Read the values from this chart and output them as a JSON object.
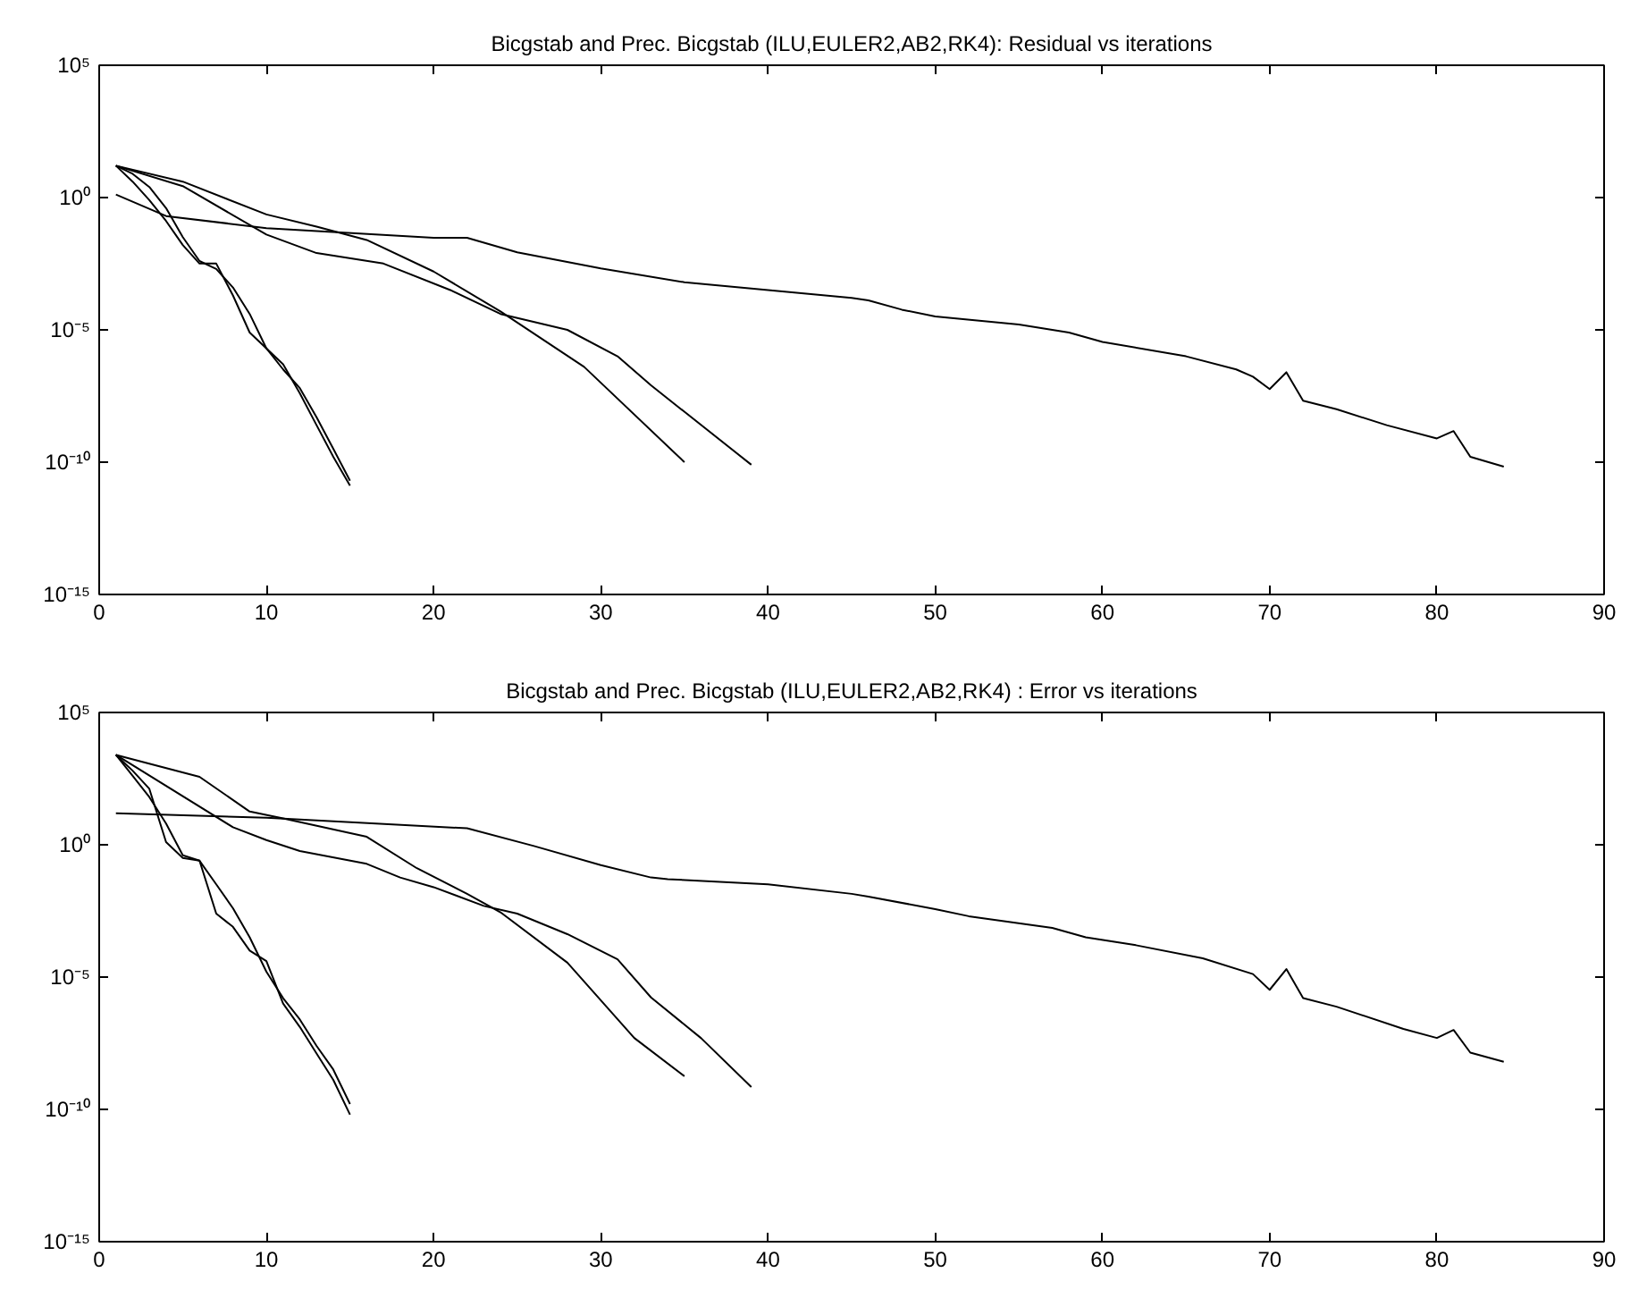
{
  "chart_data": [
    {
      "type": "line",
      "title": "Bicgstab and Prec. Bicgstab (ILU,EULER2,AB2,RK4): Residual vs iterations",
      "log": "y",
      "grid": false,
      "marker": "none",
      "line_style": "solid",
      "xlim": [
        0,
        90
      ],
      "xticks": [
        0,
        10,
        20,
        30,
        40,
        50,
        60,
        70,
        80,
        90
      ],
      "ylim": [
        1e-15,
        100000.0
      ],
      "yticks": [
        {
          "value": 100000.0,
          "label": "10⁵"
        },
        {
          "value": 1,
          "label": "10⁰"
        },
        {
          "value": 1e-05,
          "label": "10⁻⁵"
        },
        {
          "value": 1e-10,
          "label": "10⁻¹⁰"
        },
        {
          "value": 1e-15,
          "label": "10⁻¹⁵"
        }
      ],
      "series": [
        {
          "color": "#000000",
          "x": [
            1,
            4,
            10,
            20,
            22,
            25,
            30,
            35,
            40,
            45,
            46,
            48,
            50,
            55,
            58,
            60,
            65,
            68,
            69,
            70,
            71,
            72,
            74,
            77,
            80,
            81,
            82,
            84
          ],
          "values": [
            1.3,
            0.2,
            0.07,
            0.03,
            0.03,
            0.0085,
            0.0021,
            0.00063,
            0.00032,
            0.00016,
            0.00013,
            5.8e-05,
            3.2e-05,
            1.6e-05,
            7.9e-06,
            3.5e-06,
            1e-06,
            3.2e-07,
            1.7e-07,
            5.8e-08,
            2.5e-07,
            2.1e-08,
            1e-08,
            2.5e-09,
            7.9e-10,
            1.5e-09,
            1.6e-10,
            6.8e-11
          ]
        },
        {
          "color": "#000000",
          "x": [
            1,
            5,
            10,
            13,
            16,
            20,
            24,
            29,
            35
          ],
          "values": [
            16,
            4,
            0.23,
            0.08,
            0.025,
            0.0016,
            5e-05,
            4e-07,
            1e-10
          ]
        },
        {
          "color": "#000000",
          "x": [
            1,
            5,
            10,
            13,
            17,
            21,
            24,
            28,
            31,
            33,
            39
          ],
          "values": [
            16,
            2.7,
            0.04,
            0.008,
            0.0032,
            0.00032,
            4e-05,
            1e-05,
            1e-06,
            8e-08,
            8e-11
          ]
        },
        {
          "color": "#000000",
          "x": [
            1,
            2,
            3,
            4,
            5,
            6,
            7,
            8,
            9,
            10,
            11,
            12,
            13,
            14,
            15
          ],
          "values": [
            16,
            4,
            0.8,
            0.13,
            0.016,
            0.0032,
            0.0032,
            0.0002,
            7.9e-06,
            2e-06,
            5e-07,
            4e-08,
            2.5e-09,
            1.6e-10,
            1.3e-11
          ]
        },
        {
          "color": "#000000",
          "x": [
            1,
            2,
            3,
            4,
            5,
            6,
            7,
            8,
            9,
            10,
            11,
            12,
            13,
            14,
            15
          ],
          "values": [
            16,
            7.9,
            2.5,
            0.4,
            0.032,
            0.004,
            0.002,
            0.0004,
            4e-05,
            2e-06,
            3.2e-07,
            6.3e-08,
            5e-09,
            3.2e-10,
            2e-11
          ]
        }
      ]
    },
    {
      "type": "line",
      "title": "Bicgstab and Prec. Bicgstab (ILU,EULER2,AB2,RK4) : Error vs iterations",
      "log": "y",
      "grid": false,
      "marker": "none",
      "line_style": "solid",
      "xlim": [
        0,
        90
      ],
      "xticks": [
        0,
        10,
        20,
        30,
        40,
        50,
        60,
        70,
        80,
        90
      ],
      "ylim": [
        1e-15,
        100000.0
      ],
      "yticks": [
        {
          "value": 100000.0,
          "label": "10⁵"
        },
        {
          "value": 1,
          "label": "10⁰"
        },
        {
          "value": 1e-05,
          "label": "10⁻⁵"
        },
        {
          "value": 1e-10,
          "label": "10⁻¹⁰"
        },
        {
          "value": 1e-15,
          "label": "10⁻¹⁵"
        }
      ],
      "series": [
        {
          "color": "#000000",
          "x": [
            1,
            10,
            22,
            26,
            30,
            33,
            34,
            40,
            45,
            46,
            50,
            52,
            57,
            59,
            62,
            66,
            69,
            70,
            71,
            72,
            74,
            78,
            80,
            81,
            82,
            84
          ],
          "values": [
            15.5,
            10.5,
            4.2,
            0.9,
            0.17,
            0.058,
            0.05,
            0.032,
            0.014,
            0.011,
            0.0037,
            0.002,
            0.00072,
            0.00032,
            0.00016,
            5.1e-05,
            1.3e-05,
            3.3e-06,
            2e-05,
            1.6e-06,
            7.6e-07,
            1.1e-07,
            5e-08,
            1e-07,
            1.4e-08,
            6.3e-09
          ]
        },
        {
          "color": "#000000",
          "x": [
            1,
            6,
            9,
            11,
            16,
            19,
            22,
            24,
            28,
            32,
            35
          ],
          "values": [
            2500,
            370,
            18,
            10,
            2,
            0.13,
            0.014,
            0.0028,
            3.5e-05,
            5e-08,
            1.8e-09
          ]
        },
        {
          "color": "#000000",
          "x": [
            1,
            8,
            10,
            12,
            16,
            18,
            20,
            23,
            25,
            28,
            31,
            33,
            36,
            39
          ],
          "values": [
            2500,
            4.6,
            1.5,
            0.58,
            0.19,
            0.058,
            0.025,
            0.0049,
            0.0025,
            0.00042,
            4.7e-05,
            1.7e-06,
            4.9e-08,
            7e-10
          ]
        },
        {
          "color": "#000000",
          "x": [
            1,
            2,
            3,
            4,
            5,
            6,
            7,
            8,
            9,
            10,
            11,
            12,
            13,
            14,
            15
          ],
          "values": [
            2500,
            630,
            130,
            1.26,
            0.32,
            0.25,
            0.0025,
            0.00079,
            0.0001,
            4e-05,
            1e-06,
            1.3e-07,
            1.3e-08,
            1.3e-09,
            6.3e-11
          ]
        },
        {
          "color": "#000000",
          "x": [
            1,
            2,
            3,
            4,
            5,
            6,
            7,
            8,
            9,
            10,
            11,
            12,
            13,
            14,
            15
          ],
          "values": [
            2500,
            400,
            63,
            6.3,
            0.4,
            0.25,
            0.032,
            0.004,
            0.00032,
            1.6e-05,
            1.6e-06,
            2.5e-07,
            2.5e-08,
            3.2e-09,
            1.6e-10
          ]
        }
      ]
    }
  ]
}
